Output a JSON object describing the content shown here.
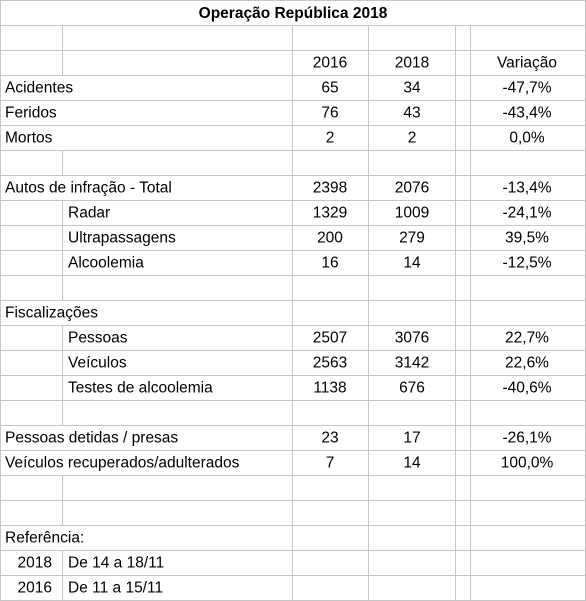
{
  "title": "Operação República 2018",
  "columns": [
    "2016",
    "2018",
    "Variação"
  ],
  "groups": [
    {
      "rows": [
        {
          "label": "Acidentes",
          "values": [
            65,
            34,
            "-47,7%"
          ]
        },
        {
          "label": "Feridos",
          "values": [
            76,
            43,
            "-43,4%"
          ]
        },
        {
          "label": "Mortos",
          "values": [
            2,
            2,
            "0,0%"
          ]
        }
      ]
    },
    {
      "label": "Autos de infração - Total",
      "values": [
        2398,
        2076,
        "-13,4%"
      ],
      "items": [
        {
          "label": "Radar",
          "values": [
            1329,
            1009,
            "-24,1%"
          ]
        },
        {
          "label": "Ultrapassagens",
          "values": [
            200,
            279,
            "39,5%"
          ]
        },
        {
          "label": "Alcoolemia",
          "values": [
            16,
            14,
            "-12,5%"
          ]
        }
      ]
    },
    {
      "label": "Fiscalizações",
      "items": [
        {
          "label": "Pessoas",
          "values": [
            2507,
            3076,
            "22,7%"
          ]
        },
        {
          "label": "Veículos",
          "values": [
            2563,
            3142,
            "22,6%"
          ]
        },
        {
          "label": "Testes de alcoolemia",
          "values": [
            1138,
            676,
            "-40,6%"
          ]
        }
      ]
    },
    {
      "rows": [
        {
          "label": "Pessoas detidas / presas",
          "values": [
            23,
            17,
            "-26,1%"
          ]
        },
        {
          "label": "Veículos recuperados/adulterados",
          "values": [
            7,
            14,
            "100,0%"
          ]
        }
      ]
    }
  ],
  "reference": {
    "label": "Referência:",
    "entries": [
      {
        "year": "2018",
        "period": "De 14 a 18/11"
      },
      {
        "year": "2016",
        "period": "De 11 a 15/11"
      }
    ]
  }
}
